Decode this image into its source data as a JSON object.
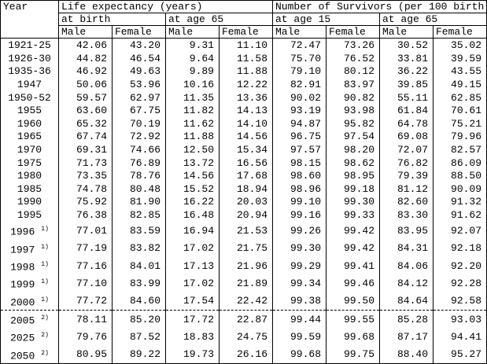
{
  "header": {
    "year": "Year",
    "groups": [
      "Life expectancy (years)",
      "Number of Survivors (per 100 birth)"
    ],
    "subgroups": [
      "at birth",
      "at age 65",
      "at age 15",
      "at age 65"
    ],
    "columns": [
      "Male",
      "Female",
      "Male",
      "Female",
      "Male",
      "Female",
      "Male",
      "Female"
    ]
  },
  "rows": [
    {
      "year": "1921-25",
      "values": [
        "42.06",
        "43.20",
        "9.31",
        "11.10",
        "72.47",
        "73.26",
        "30.52",
        "35.02"
      ]
    },
    {
      "year": "1926-30",
      "values": [
        "44.82",
        "46.54",
        "9.64",
        "11.58",
        "75.70",
        "76.52",
        "33.81",
        "39.59"
      ]
    },
    {
      "year": "1935-36",
      "values": [
        "46.92",
        "49.63",
        "9.89",
        "11.88",
        "79.10",
        "80.12",
        "36.22",
        "43.55"
      ]
    },
    {
      "year": "1947",
      "values": [
        "50.06",
        "53.96",
        "10.16",
        "12.22",
        "82.91",
        "83.97",
        "39.85",
        "49.15"
      ]
    },
    {
      "year": "1950-52",
      "values": [
        "59.57",
        "62.97",
        "11.35",
        "13.36",
        "90.02",
        "90.82",
        "55.11",
        "62.85"
      ]
    },
    {
      "year": "1955",
      "values": [
        "63.60",
        "67.75",
        "11.82",
        "14.13",
        "93.19",
        "93.98",
        "61.84",
        "70.61"
      ]
    },
    {
      "year": "1960",
      "values": [
        "65.32",
        "70.19",
        "11.62",
        "14.10",
        "94.87",
        "95.82",
        "64.78",
        "75.21"
      ]
    },
    {
      "year": "1965",
      "values": [
        "67.74",
        "72.92",
        "11.88",
        "14.56",
        "96.75",
        "97.54",
        "69.08",
        "79.96"
      ]
    },
    {
      "year": "1970",
      "values": [
        "69.31",
        "74.66",
        "12.50",
        "15.34",
        "97.57",
        "98.20",
        "72.07",
        "82.57"
      ]
    },
    {
      "year": "1975",
      "values": [
        "71.73",
        "76.89",
        "13.72",
        "16.56",
        "98.15",
        "98.62",
        "76.82",
        "86.09"
      ]
    },
    {
      "year": "1980",
      "values": [
        "73.35",
        "78.76",
        "14.56",
        "17.68",
        "98.60",
        "98.95",
        "79.39",
        "88.50"
      ]
    },
    {
      "year": "1985",
      "values": [
        "74.78",
        "80.48",
        "15.52",
        "18.94",
        "98.96",
        "99.18",
        "81.12",
        "90.09"
      ]
    },
    {
      "year": "1990",
      "values": [
        "75.92",
        "81.90",
        "16.22",
        "20.03",
        "99.10",
        "99.30",
        "82.60",
        "91.32"
      ]
    },
    {
      "year": "1995",
      "values": [
        "76.38",
        "82.85",
        "16.48",
        "20.94",
        "99.16",
        "99.33",
        "83.30",
        "91.62"
      ]
    },
    {
      "year": "1996",
      "note": "1)",
      "values": [
        "77.01",
        "83.59",
        "16.94",
        "21.53",
        "99.26",
        "99.42",
        "83.95",
        "92.07"
      ]
    },
    {
      "year": "1997",
      "note": "1)",
      "values": [
        "77.19",
        "83.82",
        "17.02",
        "21.75",
        "99.30",
        "99.42",
        "84.31",
        "92.18"
      ]
    },
    {
      "year": "1998",
      "note": "1)",
      "values": [
        "77.16",
        "84.01",
        "17.13",
        "21.96",
        "99.29",
        "99.41",
        "84.06",
        "92.20"
      ]
    },
    {
      "year": "1999",
      "note": "1)",
      "values": [
        "77.10",
        "83.99",
        "17.02",
        "21.89",
        "99.34",
        "99.46",
        "84.12",
        "92.28"
      ]
    },
    {
      "year": "2000",
      "note": "1)",
      "values": [
        "77.72",
        "84.60",
        "17.54",
        "22.42",
        "99.38",
        "99.50",
        "84.64",
        "92.58"
      ]
    },
    {
      "year": "2005",
      "note": "2)",
      "values": [
        "78.11",
        "85.20",
        "17.72",
        "22.87",
        "99.44",
        "99.55",
        "85.28",
        "93.03"
      ]
    },
    {
      "year": "2025",
      "note": "2)",
      "values": [
        "79.76",
        "87.52",
        "18.83",
        "24.75",
        "99.59",
        "99.68",
        "87.17",
        "94.41"
      ]
    },
    {
      "year": "2050",
      "note": "2)",
      "values": [
        "80.95",
        "89.22",
        "19.73",
        "26.16",
        "99.68",
        "99.75",
        "88.40",
        "95.27"
      ]
    }
  ]
}
